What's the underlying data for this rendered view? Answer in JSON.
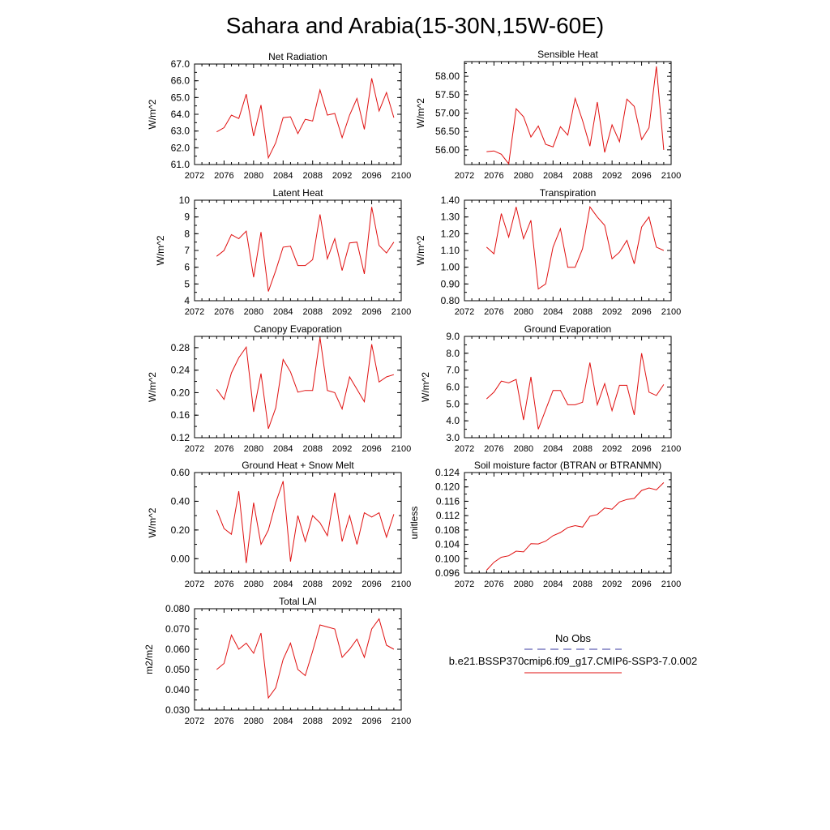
{
  "title": "Sahara and Arabia(15-30N,15W-60E)",
  "legend": {
    "obs_label": "No Obs",
    "obs_color": "#3a3aa0",
    "model_label": "b.e21.BSSP370cmip6.f09_g17.CMIP6-SSP3-7.0.002",
    "model_color": "#e01010"
  },
  "chart_data": [
    {
      "type": "line",
      "title": "Net Radiation",
      "ylabel": "W/m^2",
      "xlim": [
        2072,
        2100
      ],
      "ylim": [
        61.0,
        67.0
      ],
      "xticks": [
        "2072",
        "2076",
        "2080",
        "2084",
        "2088",
        "2092",
        "2096",
        "2100"
      ],
      "yticks": [
        "61.0",
        "62.0",
        "63.0",
        "64.0",
        "65.0",
        "66.0",
        "67.0"
      ],
      "x": [
        2075,
        2076,
        2077,
        2078,
        2079,
        2080,
        2081,
        2082,
        2083,
        2084,
        2085,
        2086,
        2087,
        2088,
        2089,
        2090,
        2091,
        2092,
        2093,
        2094,
        2095,
        2096,
        2097,
        2098,
        2099
      ],
      "series": [
        {
          "values": [
            62.95,
            63.2,
            63.95,
            63.75,
            65.2,
            62.7,
            64.55,
            61.4,
            62.3,
            63.8,
            63.85,
            62.85,
            63.7,
            63.6,
            65.45,
            63.95,
            64.05,
            62.6,
            63.95,
            64.95,
            63.1,
            66.15,
            64.2,
            65.3,
            63.8
          ]
        }
      ]
    },
    {
      "type": "line",
      "title": "Sensible Heat",
      "ylabel": "W/m^2",
      "xlim": [
        2072,
        2100
      ],
      "ylim": [
        55.6,
        58.4
      ],
      "xticks": [
        "2072",
        "2076",
        "2080",
        "2084",
        "2088",
        "2092",
        "2096",
        "2100"
      ],
      "yticks": [
        "56.00",
        "56.50",
        "57.00",
        "57.50",
        "58.00"
      ],
      "x": [
        2075,
        2076,
        2077,
        2078,
        2079,
        2080,
        2081,
        2082,
        2083,
        2084,
        2085,
        2086,
        2087,
        2088,
        2089,
        2090,
        2091,
        2092,
        2093,
        2094,
        2095,
        2096,
        2097,
        2098,
        2099
      ],
      "series": [
        {
          "values": [
            55.95,
            55.97,
            55.88,
            55.62,
            57.12,
            56.9,
            56.35,
            56.65,
            56.15,
            56.08,
            56.63,
            56.4,
            57.4,
            56.8,
            56.1,
            57.3,
            55.93,
            56.68,
            56.22,
            57.38,
            57.18,
            56.28,
            56.6,
            58.27,
            56.0
          ]
        }
      ]
    },
    {
      "type": "line",
      "title": "Latent Heat",
      "ylabel": "W/m^2",
      "xlim": [
        2072,
        2100
      ],
      "ylim": [
        4,
        10
      ],
      "xticks": [
        "2072",
        "2076",
        "2080",
        "2084",
        "2088",
        "2092",
        "2096",
        "2100"
      ],
      "yticks": [
        "4",
        "5",
        "6",
        "7",
        "8",
        "9",
        "10"
      ],
      "x": [
        2075,
        2076,
        2077,
        2078,
        2079,
        2080,
        2081,
        2082,
        2083,
        2084,
        2085,
        2086,
        2087,
        2088,
        2089,
        2090,
        2091,
        2092,
        2093,
        2094,
        2095,
        2096,
        2097,
        2098,
        2099
      ],
      "series": [
        {
          "values": [
            6.65,
            7.0,
            7.95,
            7.7,
            8.15,
            5.4,
            8.1,
            4.55,
            5.8,
            7.2,
            7.25,
            6.1,
            6.1,
            6.45,
            9.15,
            6.5,
            7.7,
            5.8,
            7.45,
            7.5,
            5.6,
            9.6,
            7.3,
            6.85,
            7.5
          ]
        }
      ]
    },
    {
      "type": "line",
      "title": "Transpiration",
      "ylabel": "W/m^2",
      "xlim": [
        2072,
        2100
      ],
      "ylim": [
        0.8,
        1.4
      ],
      "xticks": [
        "2072",
        "2076",
        "2080",
        "2084",
        "2088",
        "2092",
        "2096",
        "2100"
      ],
      "yticks": [
        "0.80",
        "0.90",
        "1.00",
        "1.10",
        "1.20",
        "1.30",
        "1.40"
      ],
      "x": [
        2075,
        2076,
        2077,
        2078,
        2079,
        2080,
        2081,
        2082,
        2083,
        2084,
        2085,
        2086,
        2087,
        2088,
        2089,
        2090,
        2091,
        2092,
        2093,
        2094,
        2095,
        2096,
        2097,
        2098,
        2099
      ],
      "series": [
        {
          "values": [
            1.12,
            1.08,
            1.32,
            1.18,
            1.36,
            1.17,
            1.28,
            0.87,
            0.9,
            1.12,
            1.23,
            1.0,
            1.0,
            1.11,
            1.36,
            1.3,
            1.25,
            1.05,
            1.09,
            1.16,
            1.02,
            1.24,
            1.3,
            1.12,
            1.1
          ]
        }
      ]
    },
    {
      "type": "line",
      "title": "Canopy Evaporation",
      "ylabel": "W/m^2",
      "xlim": [
        2072,
        2100
      ],
      "ylim": [
        0.12,
        0.3
      ],
      "xticks": [
        "2072",
        "2076",
        "2080",
        "2084",
        "2088",
        "2092",
        "2096",
        "2100"
      ],
      "yticks": [
        "0.12",
        "0.16",
        "0.20",
        "0.24",
        "0.28"
      ],
      "x": [
        2075,
        2076,
        2077,
        2078,
        2079,
        2080,
        2081,
        2082,
        2083,
        2084,
        2085,
        2086,
        2087,
        2088,
        2089,
        2090,
        2091,
        2092,
        2093,
        2094,
        2095,
        2096,
        2097,
        2098,
        2099
      ],
      "series": [
        {
          "values": [
            0.206,
            0.188,
            0.235,
            0.262,
            0.281,
            0.166,
            0.234,
            0.136,
            0.173,
            0.259,
            0.237,
            0.201,
            0.204,
            0.204,
            0.298,
            0.204,
            0.2,
            0.171,
            0.228,
            0.206,
            0.184,
            0.286,
            0.219,
            0.228,
            0.232
          ]
        }
      ]
    },
    {
      "type": "line",
      "title": "Ground Evaporation",
      "ylabel": "W/m^2",
      "xlim": [
        2072,
        2100
      ],
      "ylim": [
        3.0,
        9.0
      ],
      "xticks": [
        "2072",
        "2076",
        "2080",
        "2084",
        "2088",
        "2092",
        "2096",
        "2100"
      ],
      "yticks": [
        "3.0",
        "4.0",
        "5.0",
        "6.0",
        "7.0",
        "8.0",
        "9.0"
      ],
      "x": [
        2075,
        2076,
        2077,
        2078,
        2079,
        2080,
        2081,
        2082,
        2083,
        2084,
        2085,
        2086,
        2087,
        2088,
        2089,
        2090,
        2091,
        2092,
        2093,
        2094,
        2095,
        2096,
        2097,
        2098,
        2099
      ],
      "series": [
        {
          "values": [
            5.3,
            5.7,
            6.35,
            6.25,
            6.45,
            4.05,
            6.6,
            3.5,
            4.65,
            5.8,
            5.8,
            4.95,
            4.95,
            5.1,
            7.45,
            4.95,
            6.2,
            4.6,
            6.1,
            6.1,
            4.35,
            8.0,
            5.7,
            5.5,
            6.15
          ]
        }
      ]
    },
    {
      "type": "line",
      "title": "Ground Heat + Snow Melt",
      "ylabel": "W/m^2",
      "xlim": [
        2072,
        2100
      ],
      "ylim": [
        -0.1,
        0.6
      ],
      "xticks": [
        "2072",
        "2076",
        "2080",
        "2084",
        "2088",
        "2092",
        "2096",
        "2100"
      ],
      "yticks": [
        "0.00",
        "0.20",
        "0.40",
        "0.60"
      ],
      "x": [
        2075,
        2076,
        2077,
        2078,
        2079,
        2080,
        2081,
        2082,
        2083,
        2084,
        2085,
        2086,
        2087,
        2088,
        2089,
        2090,
        2091,
        2092,
        2093,
        2094,
        2095,
        2096,
        2097,
        2098,
        2099
      ],
      "series": [
        {
          "values": [
            0.34,
            0.21,
            0.17,
            0.47,
            -0.03,
            0.39,
            0.1,
            0.2,
            0.39,
            0.54,
            -0.02,
            0.3,
            0.12,
            0.3,
            0.25,
            0.16,
            0.46,
            0.12,
            0.3,
            0.1,
            0.32,
            0.29,
            0.32,
            0.15,
            0.31
          ]
        }
      ]
    },
    {
      "type": "line",
      "title": "Soil moisture factor (BTRAN or BTRANMN)",
      "ylabel": "unitless",
      "xlim": [
        2072,
        2100
      ],
      "ylim": [
        0.096,
        0.124
      ],
      "xticks": [
        "2072",
        "2076",
        "2080",
        "2084",
        "2088",
        "2092",
        "2096",
        "2100"
      ],
      "yticks": [
        "0.096",
        "0.100",
        "0.104",
        "0.108",
        "0.112",
        "0.116",
        "0.120",
        "0.124"
      ],
      "x": [
        2075,
        2076,
        2077,
        2078,
        2079,
        2080,
        2081,
        2082,
        2083,
        2084,
        2085,
        2086,
        2087,
        2088,
        2089,
        2090,
        2091,
        2092,
        2093,
        2094,
        2095,
        2096,
        2097,
        2098,
        2099
      ],
      "series": [
        {
          "values": [
            0.0968,
            0.099,
            0.1004,
            0.1008,
            0.1021,
            0.1019,
            0.1042,
            0.1041,
            0.1049,
            0.1064,
            0.1073,
            0.1087,
            0.1092,
            0.1088,
            0.1118,
            0.1123,
            0.1141,
            0.1138,
            0.1158,
            0.1165,
            0.1168,
            0.119,
            0.1197,
            0.1192,
            0.1212
          ]
        }
      ]
    },
    {
      "type": "line",
      "title": "Total LAI",
      "ylabel": "m2/m2",
      "xlim": [
        2072,
        2100
      ],
      "ylim": [
        0.03,
        0.08
      ],
      "xticks": [
        "2072",
        "2076",
        "2080",
        "2084",
        "2088",
        "2092",
        "2096",
        "2100"
      ],
      "yticks": [
        "0.030",
        "0.040",
        "0.050",
        "0.060",
        "0.070",
        "0.080"
      ],
      "x": [
        2075,
        2076,
        2077,
        2078,
        2079,
        2080,
        2081,
        2082,
        2083,
        2084,
        2085,
        2086,
        2087,
        2088,
        2089,
        2090,
        2091,
        2092,
        2093,
        2094,
        2095,
        2096,
        2097,
        2098,
        2099
      ],
      "series": [
        {
          "values": [
            0.05,
            0.053,
            0.067,
            0.06,
            0.063,
            0.058,
            0.068,
            0.036,
            0.041,
            0.055,
            0.063,
            0.05,
            0.047,
            0.059,
            0.072,
            0.071,
            0.07,
            0.056,
            0.06,
            0.065,
            0.056,
            0.07,
            0.075,
            0.062,
            0.06
          ]
        }
      ]
    }
  ]
}
